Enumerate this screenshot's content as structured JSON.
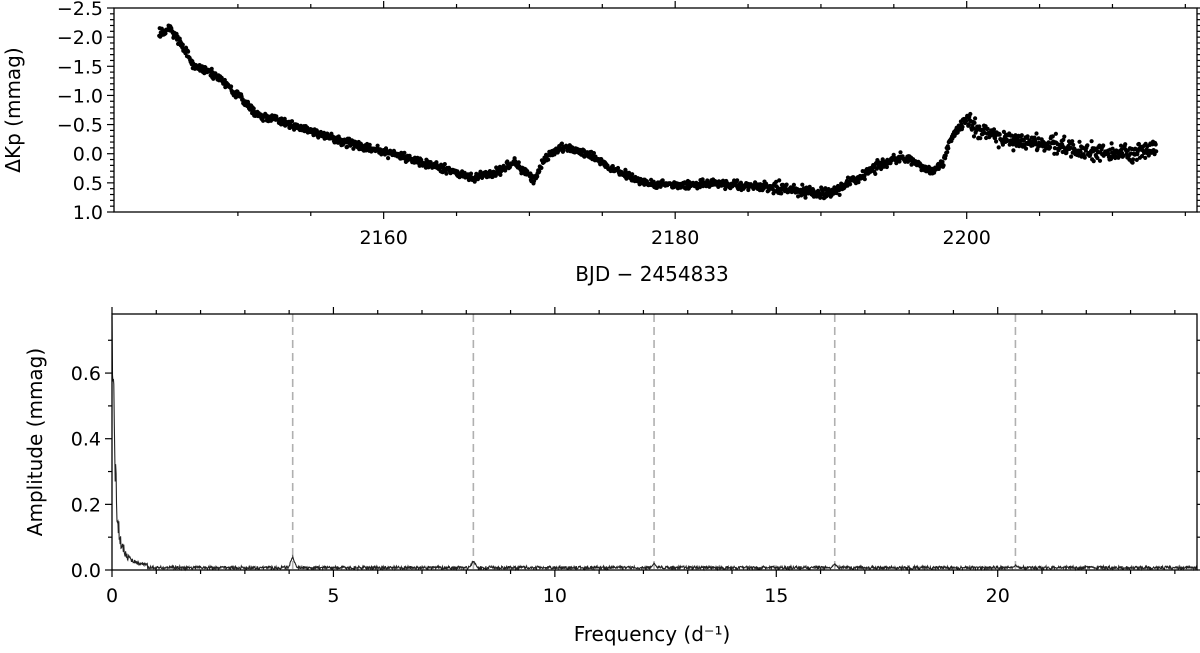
{
  "chart_data": [
    {
      "type": "scatter",
      "title": "",
      "xlabel": "BJD − 2454833",
      "ylabel": "ΔKp (mmag)",
      "xlim": [
        2141.5,
        2215.8
      ],
      "ylim": [
        1.0,
        -2.5
      ],
      "y_inverted": true,
      "xticks": [
        2160,
        2180,
        2200
      ],
      "yticks": [
        -2.5,
        -2.0,
        -1.5,
        -1.0,
        -0.5,
        0.0,
        0.5,
        1.0
      ],
      "ytick_labels": [
        "−2.5",
        "−2.0",
        "−1.5",
        "−1.0",
        "−0.5",
        "0.0",
        "0.5",
        "1.0"
      ],
      "point_color": "#000000",
      "trend": {
        "x": [
          2144.6,
          2145.3,
          2146.2,
          2147.0,
          2148.5,
          2150.0,
          2151.2,
          2153.0,
          2156.0,
          2159.0,
          2162.0,
          2164.0,
          2166.0,
          2167.5,
          2169.0,
          2170.3,
          2171.0,
          2172.2,
          2174.0,
          2176.0,
          2178.0,
          2180.0,
          2182.0,
          2185.0,
          2188.0,
          2190.5,
          2192.0,
          2194.0,
          2195.5,
          2196.5,
          2197.5,
          2198.3,
          2199.0,
          2200.0,
          2200.8,
          2202.0,
          2204.0,
          2206.0,
          2208.0,
          2210.0,
          2212.0,
          2213.0
        ],
        "y": [
          -2.05,
          -2.15,
          -1.85,
          -1.5,
          -1.35,
          -1.0,
          -0.7,
          -0.55,
          -0.3,
          -0.1,
          0.1,
          0.25,
          0.4,
          0.35,
          0.15,
          0.45,
          0.1,
          -0.12,
          0.0,
          0.3,
          0.5,
          0.55,
          0.5,
          0.55,
          0.6,
          0.7,
          0.5,
          0.2,
          0.05,
          0.15,
          0.3,
          0.2,
          -0.3,
          -0.6,
          -0.4,
          -0.3,
          -0.2,
          -0.15,
          -0.05,
          0.0,
          -0.05,
          -0.1
        ]
      }
    },
    {
      "type": "line",
      "title": "",
      "xlabel": "Frequency (d⁻¹)",
      "ylabel": "Amplitude (mmag)",
      "xlim": [
        0,
        24.5
      ],
      "ylim": [
        0,
        0.78
      ],
      "xticks": [
        0,
        5,
        10,
        15,
        20
      ],
      "yticks": [
        0.0,
        0.2,
        0.4,
        0.6
      ],
      "ytick_labels": [
        "0.0",
        "0.2",
        "0.4",
        "0.6"
      ],
      "harmonic_lines": [
        4.08,
        8.16,
        12.24,
        16.32,
        20.4
      ],
      "harmonic_color": "#b0b0b0",
      "line_color": "#222222",
      "low_frequency": {
        "x": [
          0.0,
          0.02,
          0.05,
          0.08,
          0.1,
          0.13,
          0.16,
          0.2,
          0.25,
          0.3,
          0.35,
          0.45,
          0.6,
          0.8
        ],
        "y": [
          0.68,
          0.62,
          0.45,
          0.3,
          0.2,
          0.15,
          0.12,
          0.09,
          0.07,
          0.05,
          0.04,
          0.03,
          0.02,
          0.015
        ]
      },
      "peaks": {
        "x": [
          4.08,
          8.16,
          12.24,
          16.32,
          20.4
        ],
        "y": [
          0.04,
          0.03,
          0.02,
          0.02,
          0.015
        ]
      },
      "noise_level": 0.008
    }
  ]
}
